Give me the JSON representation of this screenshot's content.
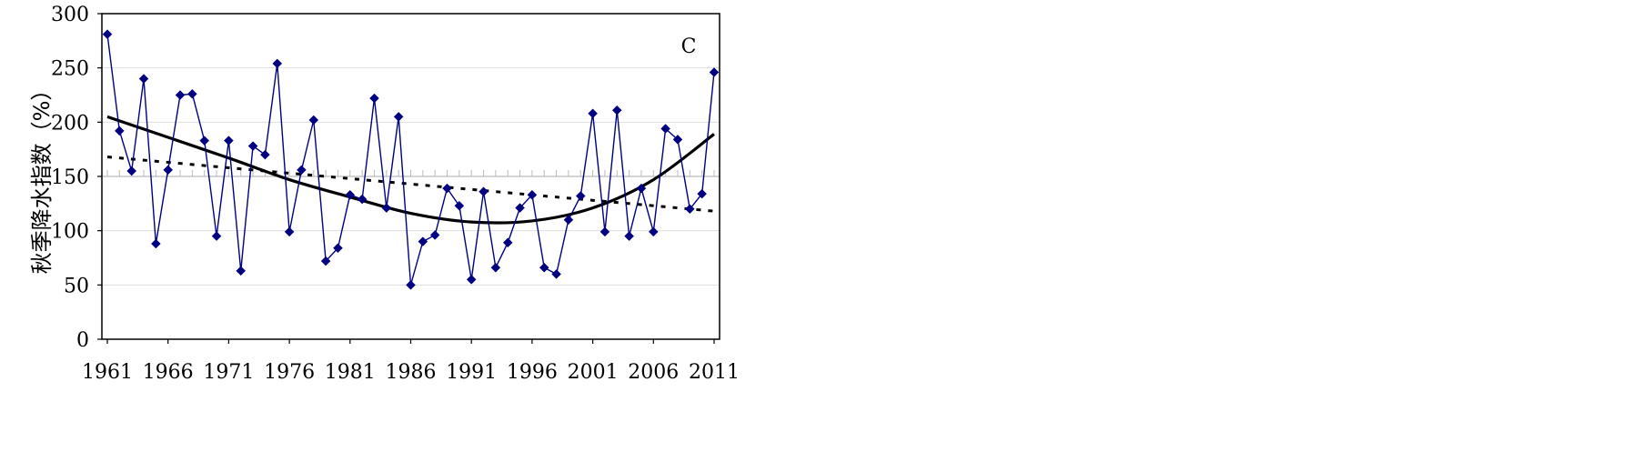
{
  "chart_data": {
    "type": "line",
    "title": "",
    "panel_label": "C",
    "xlabel": "",
    "ylabel": "秋季降水指数（%）",
    "xlim": [
      1961,
      2011
    ],
    "ylim": [
      0,
      300
    ],
    "x_ticks": [
      "1961",
      "1966",
      "1971",
      "1976",
      "1981",
      "1986",
      "1991",
      "1996",
      "2001",
      "2006",
      "2011"
    ],
    "y_ticks": [
      "0",
      "50",
      "100",
      "150",
      "200",
      "250",
      "300"
    ],
    "grid": true,
    "reference_line": 150,
    "colors": {
      "series": "#000080",
      "trend": "#000000",
      "reference": "#bbbbbb",
      "grid": "#dddddd"
    },
    "series": [
      {
        "kind": "observed",
        "marker": "diamond",
        "x": [
          1961,
          1962,
          1963,
          1964,
          1965,
          1966,
          1967,
          1968,
          1969,
          1970,
          1971,
          1972,
          1973,
          1974,
          1975,
          1976,
          1977,
          1978,
          1979,
          1980,
          1981,
          1982,
          1983,
          1984,
          1985,
          1986,
          1987,
          1988,
          1989,
          1990,
          1991,
          1992,
          1993,
          1994,
          1995,
          1996,
          1997,
          1998,
          1999,
          2000,
          2001,
          2002,
          2003,
          2004,
          2005,
          2006,
          2007,
          2008,
          2009,
          2010,
          2011
        ],
        "values": [
          281,
          192,
          155,
          240,
          88,
          156,
          225,
          226,
          183,
          95,
          183,
          63,
          178,
          170,
          254,
          99,
          156,
          202,
          72,
          84,
          133,
          129,
          222,
          121,
          205,
          50,
          90,
          96,
          139,
          123,
          55,
          136,
          66,
          89,
          121,
          133,
          66,
          60,
          110,
          132,
          208,
          99,
          211,
          95,
          139,
          99,
          194,
          184,
          120,
          134,
          246
        ]
      },
      {
        "kind": "polynomial-trend",
        "style": "solid",
        "x": [
          1961,
          1966,
          1971,
          1976,
          1981,
          1986,
          1991,
          1996,
          2001,
          2006,
          2011
        ],
        "values": [
          205,
          186,
          167,
          147,
          131,
          116,
          108,
          109,
          121,
          147,
          189
        ]
      },
      {
        "kind": "linear-trend",
        "style": "dotted",
        "x": [
          1961,
          2011
        ],
        "values": [
          168,
          118
        ]
      }
    ]
  }
}
